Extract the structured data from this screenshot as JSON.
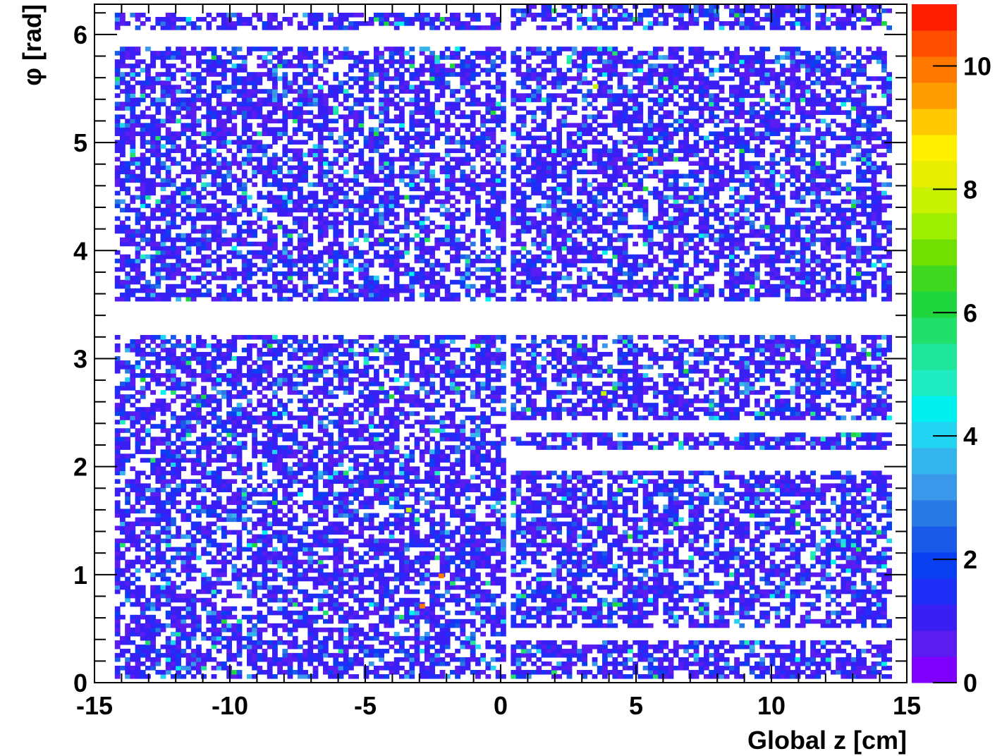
{
  "chart_data": {
    "type": "heatmap",
    "title": "",
    "xlabel": "Global z [cm]",
    "ylabel": "φ [rad]",
    "xlim": [
      -15,
      15
    ],
    "ylim": [
      0,
      6.28
    ],
    "x_ticks": [
      -15,
      -10,
      -5,
      0,
      5,
      10,
      15
    ],
    "x_tick_labels": [
      "-15",
      "-10",
      "-5",
      "0",
      "5",
      "10",
      "15"
    ],
    "y_ticks": [
      0,
      1,
      2,
      3,
      4,
      5,
      6
    ],
    "y_tick_labels": [
      "0",
      "1",
      "2",
      "3",
      "4",
      "5",
      "6"
    ],
    "z_range": [
      0,
      11
    ],
    "z_ticks": [
      0,
      2,
      4,
      6,
      8,
      10
    ],
    "z_tick_labels": [
      "0",
      "2",
      "4",
      "6",
      "8",
      "10"
    ],
    "bins": {
      "x": 160,
      "y": 160
    },
    "filled_regions": [
      {
        "z": [
          -14.2,
          0.2
        ],
        "phi": [
          3.53,
          5.87
        ]
      },
      {
        "z": [
          -14.2,
          0.2
        ],
        "phi": [
          0.05,
          3.2
        ]
      },
      {
        "z": [
          -14.2,
          0.2
        ],
        "phi": [
          6.05,
          6.2
        ]
      },
      {
        "z": [
          0.4,
          14.4
        ],
        "phi": [
          3.53,
          5.87
        ]
      },
      {
        "z": [
          0.4,
          14.4
        ],
        "phi": [
          6.05,
          6.28
        ]
      },
      {
        "z": [
          0.4,
          14.4
        ],
        "phi": [
          2.45,
          3.2
        ]
      },
      {
        "z": [
          0.4,
          14.4
        ],
        "phi": [
          2.15,
          2.3
        ]
      },
      {
        "z": [
          0.4,
          14.4
        ],
        "phi": [
          0.5,
          1.97
        ]
      },
      {
        "z": [
          0.4,
          14.4
        ],
        "phi": [
          0.05,
          0.38
        ]
      }
    ],
    "hot_spots": [
      {
        "z": 5.5,
        "phi": 4.85,
        "value": 10
      },
      {
        "z": -2.2,
        "phi": 0.99,
        "value": 10
      },
      {
        "z": -2.9,
        "phi": 0.71,
        "value": 10
      },
      {
        "z": -3.4,
        "phi": 1.6,
        "value": 8
      },
      {
        "z": 3.5,
        "phi": 5.52,
        "value": 8
      },
      {
        "z": 3.8,
        "phi": 2.68,
        "value": 8
      }
    ],
    "grid": false,
    "colorbar": "right",
    "palette": [
      "#7f00ff",
      "#5a1cf0",
      "#3a1ff5",
      "#1f2ef8",
      "#0a3ff2",
      "#1a5ae8",
      "#2a7ae6",
      "#3a98ea",
      "#35b5ee",
      "#22d4f2",
      "#00f0f0",
      "#1fecc0",
      "#1ee69a",
      "#22de6a",
      "#1fd63f",
      "#3dd81f",
      "#6fe000",
      "#9ff000",
      "#c8f200",
      "#e8ee00",
      "#fff000",
      "#ffc800",
      "#ff9c00",
      "#ff7800",
      "#ff4e00",
      "#ff1e00"
    ]
  }
}
